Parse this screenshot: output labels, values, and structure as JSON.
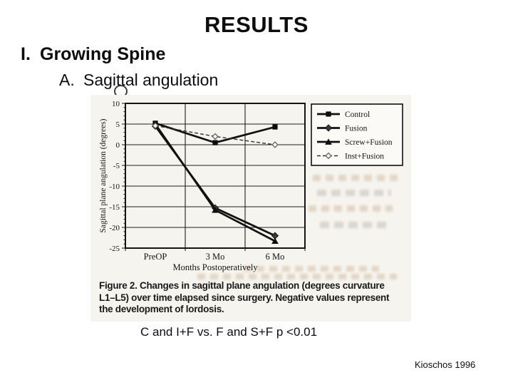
{
  "slide": {
    "title": "RESULTS",
    "outline": [
      {
        "marker": "I.",
        "label": "Growing Spine"
      },
      {
        "marker": "A.",
        "label": "Sagittal angulation"
      }
    ],
    "stat_note": "C and I+F vs. F and S+F p <0.01",
    "attribution": "Kioschos 1996"
  },
  "figure": {
    "caption_lines": [
      "Figure 2.  Changes in sagittal plane angulation (degrees curvature",
      "L1–L5) over time elapsed since surgery. Negative values represent",
      "the development of lordosis."
    ]
  },
  "chart_data": {
    "type": "line",
    "title": "",
    "categories": [
      "PreOP",
      "3 Mo",
      "6 Mo"
    ],
    "series": [
      {
        "name": "Control",
        "marker": "filled-square",
        "line_style": "solid",
        "values": [
          5.2,
          0.5,
          4.3
        ]
      },
      {
        "name": "Fusion",
        "marker": "filled-diamond",
        "line_style": "solid",
        "values": [
          4.5,
          -15.3,
          -22.0
        ]
      },
      {
        "name": "Screw+Fusion",
        "marker": "filled-triangle",
        "line_style": "solid",
        "values": [
          5.0,
          -15.8,
          -23.3
        ]
      },
      {
        "name": "Inst+Fusion",
        "marker": "open-diamond",
        "line_style": "dashed",
        "values": [
          4.6,
          2.0,
          0.0
        ]
      }
    ],
    "xlabel": "Months Postoperatively",
    "ylabel": "Sagittal plane angulation (degrees)",
    "ylim": [
      -25,
      10
    ],
    "yticks": [
      10,
      5,
      0,
      -5,
      -10,
      -15,
      -20,
      -25
    ],
    "grid": true,
    "legend_position": "top-right",
    "colors": {
      "ink": "#111111",
      "scan_background": "#f6f4ef"
    }
  }
}
